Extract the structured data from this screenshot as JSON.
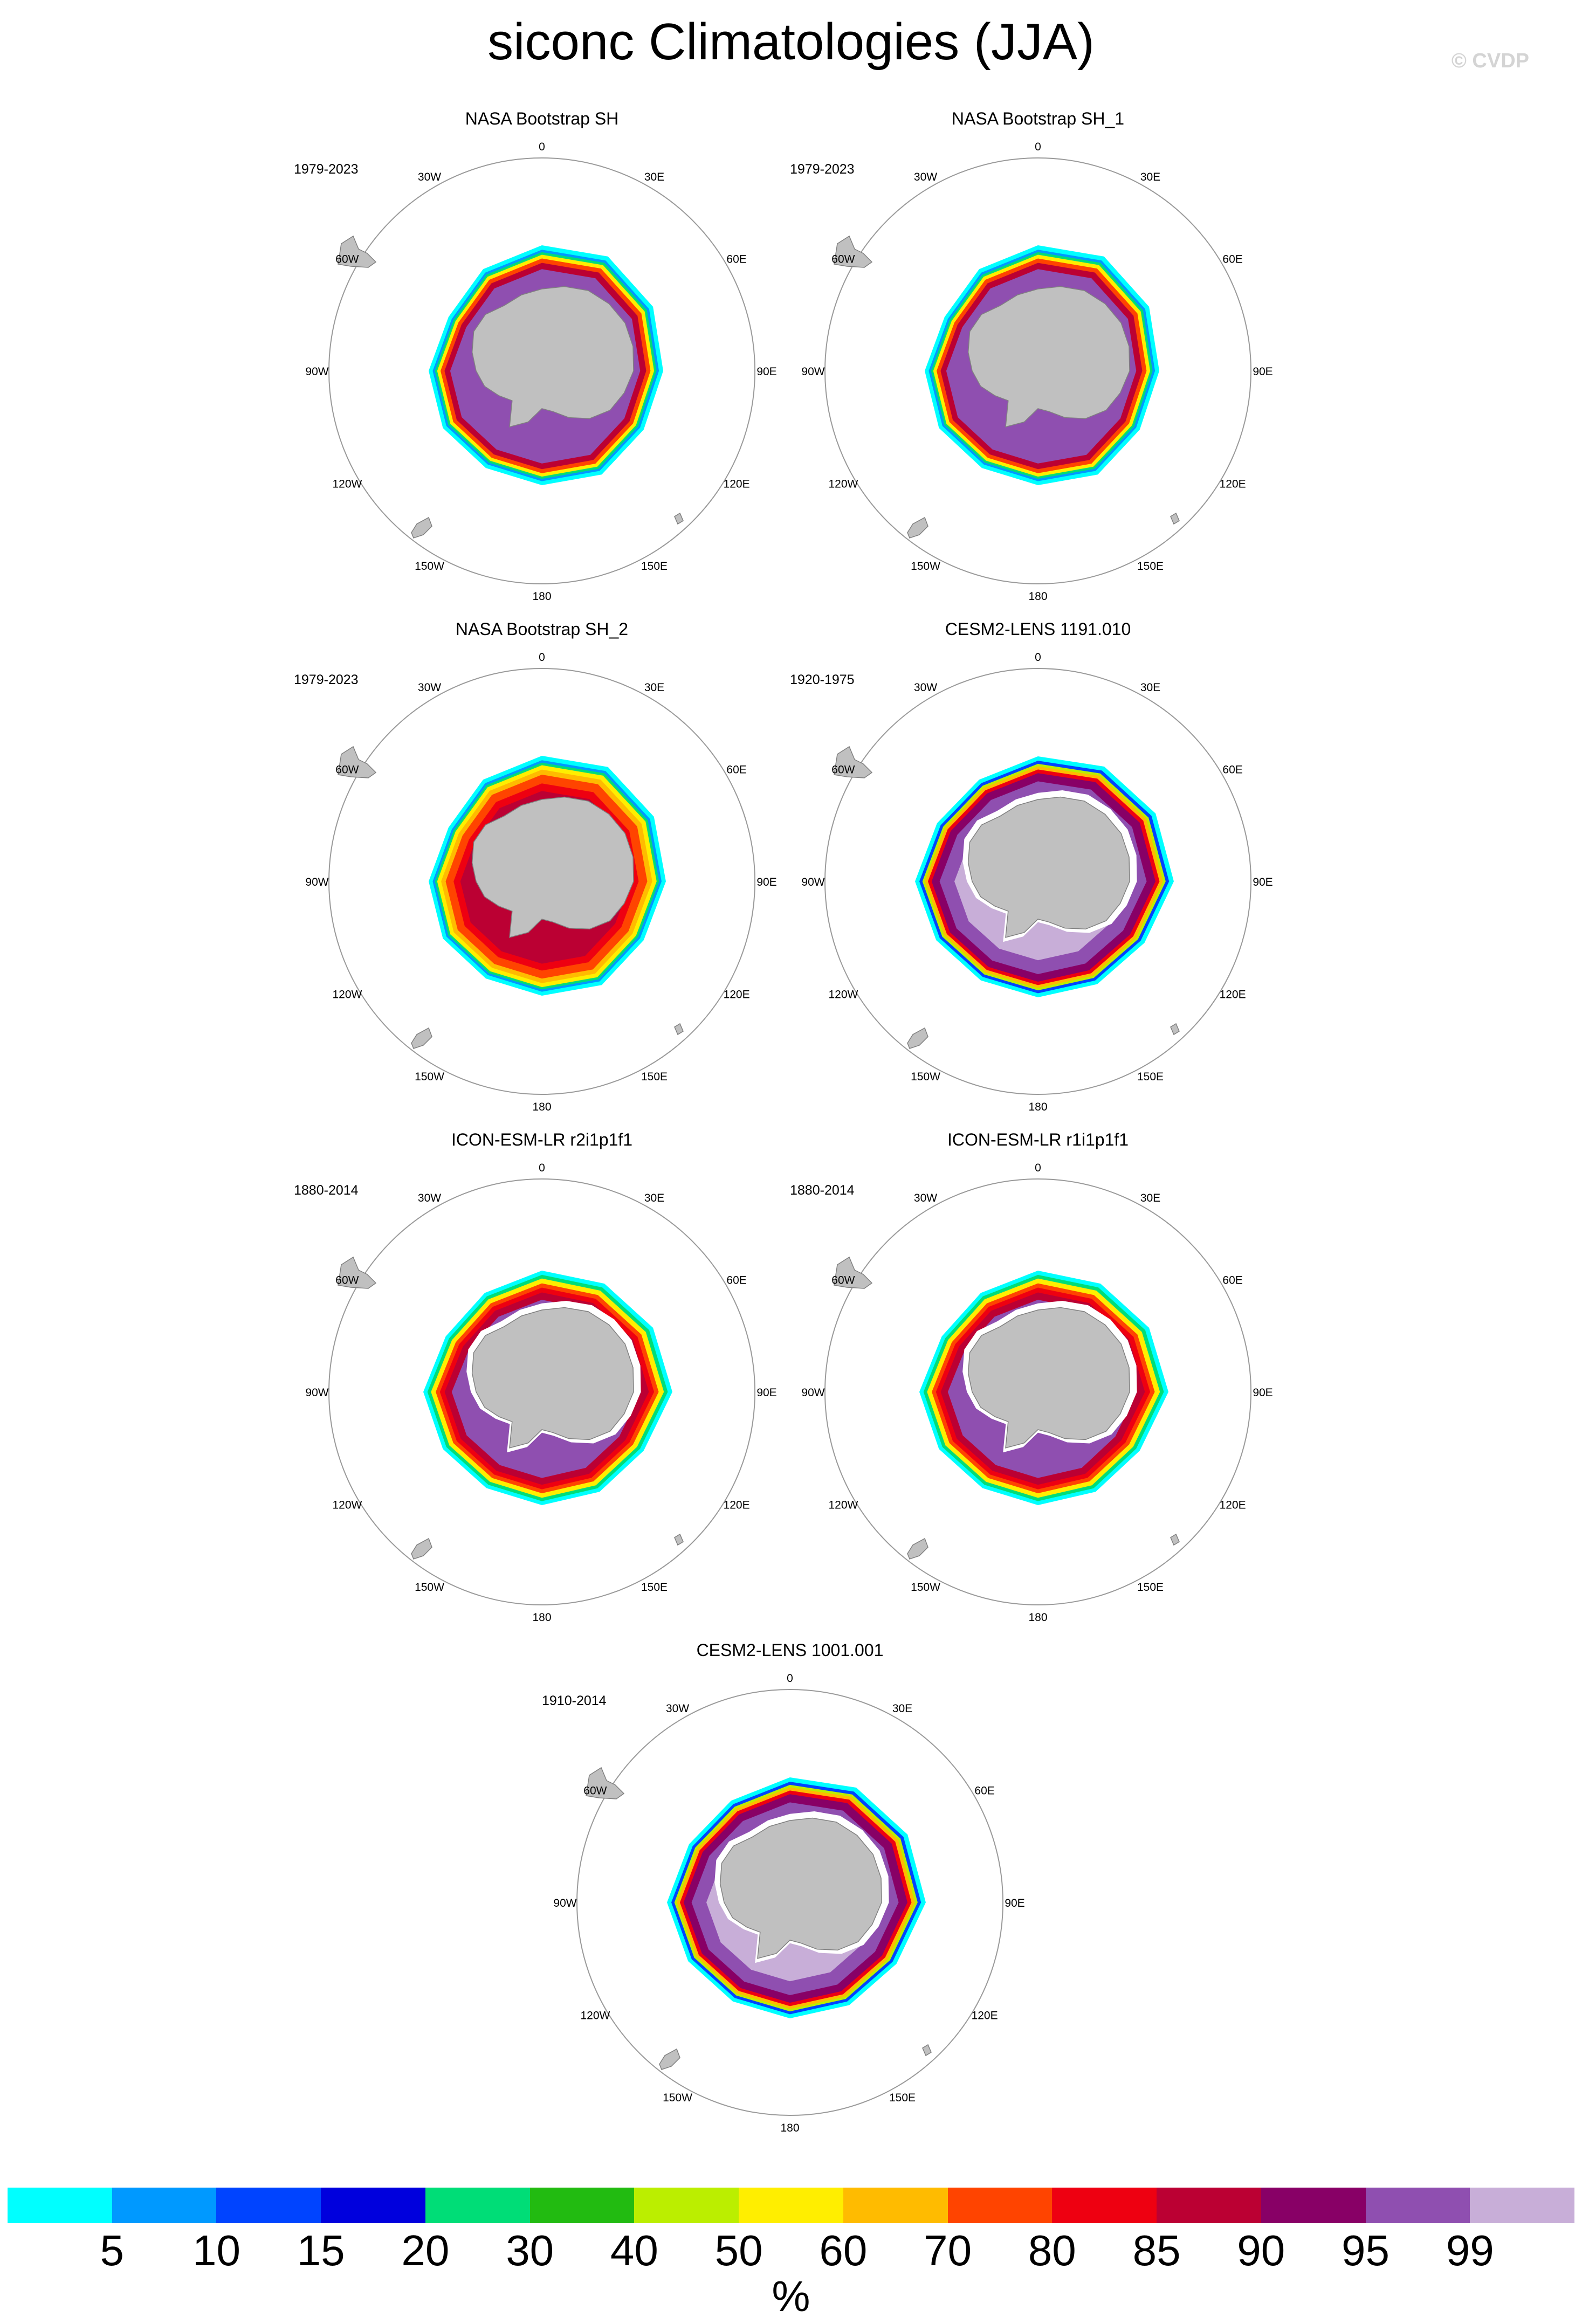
{
  "title": "siconc Climatologies (JJA)",
  "credit": "© CVDP",
  "lon_labels": [
    "0",
    "30E",
    "60E",
    "90E",
    "120E",
    "150E",
    "180",
    "150W",
    "120W",
    "90W",
    "60W",
    "30W"
  ],
  "panels": [
    {
      "title": "NASA Bootstrap SH",
      "years": "1979-2023",
      "variant": "obs"
    },
    {
      "title": "NASA Bootstrap SH_1",
      "years": "1979-2023",
      "variant": "obs"
    },
    {
      "title": "NASA Bootstrap SH_2",
      "years": "1979-2023",
      "variant": "obs2"
    },
    {
      "title": "CESM2-LENS 1191.010",
      "years": "1920-1975",
      "variant": "cesm"
    },
    {
      "title": "ICON-ESM-LR r2i1p1f1",
      "years": "1880-2014",
      "variant": "icon"
    },
    {
      "title": "ICON-ESM-LR r1i1p1f1",
      "years": "1880-2014",
      "variant": "icon"
    },
    {
      "title": "CESM2-LENS 1001.001",
      "years": "1910-2014",
      "variant": "cesm"
    }
  ],
  "colorbar": {
    "colors": [
      "#00ffff",
      "#0099ff",
      "#0044ff",
      "#0000dd",
      "#00dd77",
      "#22bb11",
      "#bbee00",
      "#ffee00",
      "#ffbb00",
      "#ff4400",
      "#ee0011",
      "#bb0033",
      "#880066",
      "#8f4fb0",
      "#c8aed8"
    ],
    "labels": [
      "5",
      "10",
      "15",
      "20",
      "30",
      "40",
      "50",
      "60",
      "70",
      "80",
      "85",
      "90",
      "95",
      "99"
    ],
    "unit": "%"
  }
}
